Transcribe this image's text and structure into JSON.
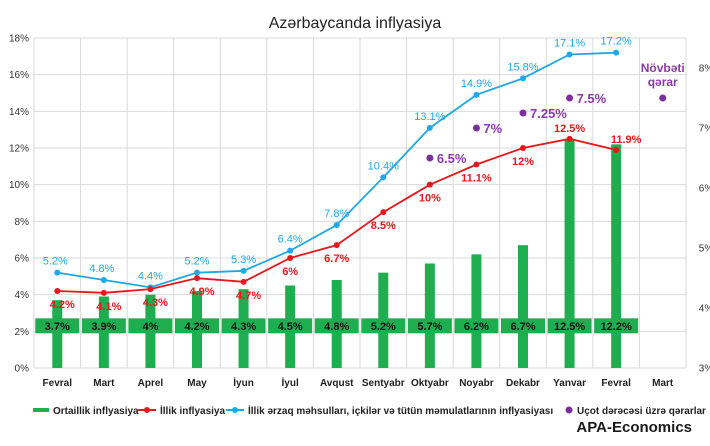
{
  "chart_data": {
    "type": "bar",
    "title": "Azərbaycanda inflyasiya",
    "source": "APA-Economics",
    "categories": [
      "Fevral",
      "Mart",
      "Aprel",
      "May",
      "İyun",
      "İyul",
      "Avqust",
      "Sentyabr",
      "Oktyabr",
      "Noyabr",
      "Dekabr",
      "Yanvar",
      "Fevral",
      "Mart"
    ],
    "left_axis": {
      "min": 0,
      "max": 18,
      "step": 2,
      "tick_labels": [
        "0%",
        "2%",
        "4%",
        "6%",
        "8%",
        "10%",
        "12%",
        "14%",
        "16%",
        "18%"
      ]
    },
    "right_axis": {
      "min": 3,
      "max": 8.5,
      "step": 1,
      "tick_labels": [
        "3%",
        "4%",
        "5%",
        "6%",
        "7%",
        "8%"
      ]
    },
    "grid": true,
    "legend_position": "bottom",
    "series": [
      {
        "name": "Ortaillik inflyasiya",
        "kind": "bar",
        "axis": "left",
        "color": "#1fae4f",
        "values": [
          3.7,
          3.9,
          4.0,
          4.2,
          4.3,
          4.5,
          4.8,
          5.2,
          5.7,
          6.2,
          6.7,
          12.5,
          12.2,
          null
        ],
        "bar_heights": [
          3.7,
          3.9,
          4.0,
          4.2,
          4.3,
          4.5,
          4.8,
          5.2,
          5.7,
          6.2,
          6.7,
          12.5,
          12.2,
          null
        ],
        "labels": [
          "3.7%",
          "3.9%",
          "4%",
          "4.2%",
          "4.3%",
          "4.5%",
          "4.8%",
          "5.2%",
          "5.7%",
          "6.2%",
          "6.7%",
          "12.5%",
          "12.2%",
          ""
        ]
      },
      {
        "name": "İllik inflyasiya",
        "kind": "line",
        "axis": "left",
        "color": "#e8171b",
        "values": [
          4.2,
          4.1,
          4.3,
          4.9,
          4.7,
          6.0,
          6.7,
          8.5,
          10.0,
          11.1,
          12.0,
          12.5,
          11.9,
          null
        ],
        "labels": [
          "4.2%",
          "4.1%",
          "4.3%",
          "4.9%",
          "4.7%",
          "6%",
          "6.7%",
          "8.5%",
          "10%",
          "11.1%",
          "12%",
          "12.5%",
          "11.9%",
          ""
        ]
      },
      {
        "name": "İllik ərzaq məhsulları, içkilər və tütün məmulatlarının inflyasiyası",
        "kind": "line",
        "axis": "left",
        "color": "#1ea8e6",
        "values": [
          5.2,
          4.8,
          4.4,
          5.2,
          5.3,
          6.4,
          7.8,
          10.4,
          13.1,
          14.9,
          15.8,
          17.1,
          17.2,
          null
        ],
        "labels": [
          "5.2%",
          "4.8%",
          "4.4%",
          "5.2%",
          "5.3%",
          "6.4%",
          "7.8%",
          "10.4%",
          "13.1%",
          "14.9%",
          "15.8%",
          "17.1%",
          "17.2%",
          ""
        ]
      },
      {
        "name": "Uçot dərəcəsi üzrə qərarlar",
        "kind": "scatter",
        "axis": "right",
        "color": "#7b2f9e",
        "values": [
          null,
          null,
          null,
          null,
          null,
          null,
          null,
          null,
          6.5,
          7.0,
          7.25,
          7.5,
          null,
          7.5
        ],
        "labels": [
          "",
          "",
          "",
          "",
          "",
          "",
          "",
          "",
          "6.5%",
          "7%",
          "7.25%",
          "7.5%",
          "",
          ""
        ]
      }
    ],
    "annotations": [
      {
        "category_index": 13,
        "text_lines": [
          "Növbəti",
          "qərar"
        ],
        "color": "#8b3aa8"
      }
    ]
  }
}
